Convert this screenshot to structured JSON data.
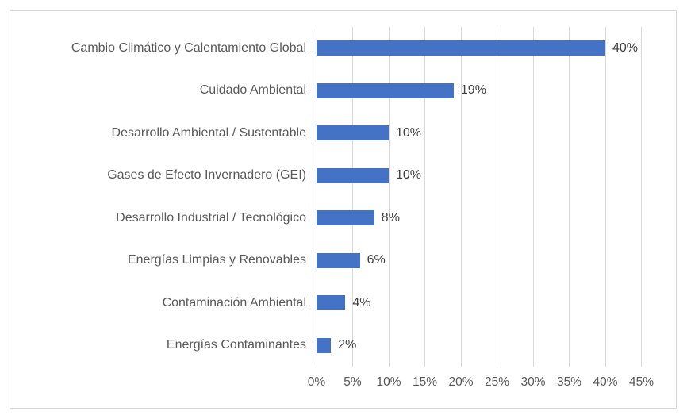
{
  "chart_data": {
    "type": "bar",
    "orientation": "horizontal",
    "categories": [
      "Cambio Climático y Calentamiento Global",
      "Cuidado Ambiental",
      "Desarrollo Ambiental / Sustentable",
      "Gases de Efecto Invernadero (GEI)",
      "Desarrollo Industrial / Tecnológico",
      "Energías Limpias y Renovables",
      "Contaminación Ambiental",
      "Energías Contaminantes"
    ],
    "values": [
      40,
      19,
      10,
      10,
      8,
      6,
      4,
      2
    ],
    "data_labels": [
      "40%",
      "19%",
      "10%",
      "10%",
      "8%",
      "6%",
      "4%",
      "2%"
    ],
    "x_tick_labels": [
      "0%",
      "5%",
      "10%",
      "15%",
      "20%",
      "25%",
      "30%",
      "35%",
      "40%",
      "45%"
    ],
    "xlim": [
      0,
      45
    ],
    "x_tick_step": 5,
    "grid": "vertical",
    "legend": "none",
    "colors": {
      "bar": "#4472C4",
      "gridline": "#D9D9D9",
      "frame_border": "#D9D9D9",
      "category_label": "#595959",
      "tick_label": "#595959",
      "data_label": "#404040",
      "background": "#FFFFFF"
    }
  }
}
